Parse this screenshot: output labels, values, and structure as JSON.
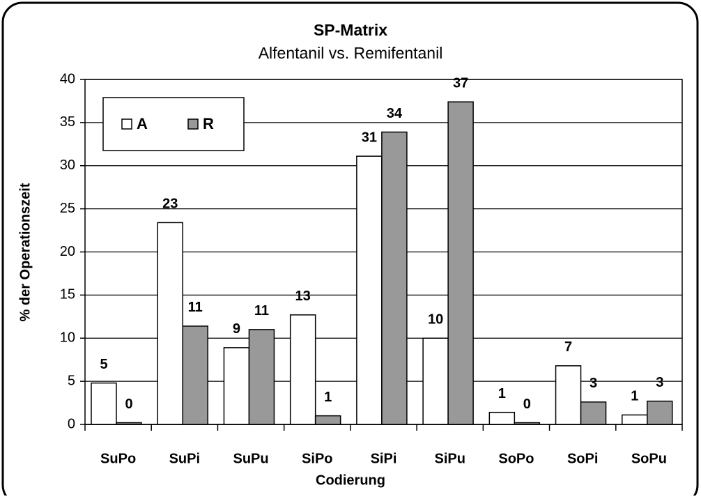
{
  "chart_data": {
    "type": "bar",
    "title": "SP-Matrix",
    "subtitle": "Alfentanil vs. Remifentanil",
    "x_label": "Codierung",
    "y_label": "% der Operationszeit",
    "categories": [
      "SuPo",
      "SuPi",
      "SuPu",
      "SiPo",
      "SiPi",
      "SiPu",
      "SoPo",
      "SoPi",
      "SoPu"
    ],
    "series": [
      {
        "name": "A",
        "color": "#ffffff",
        "values": [
          4.8,
          23.4,
          8.9,
          12.7,
          31.1,
          10.0,
          1.4,
          6.8,
          1.1
        ],
        "value_labels": [
          "5",
          "23",
          "9",
          "13",
          "31",
          "10",
          "1",
          "7",
          "1"
        ]
      },
      {
        "name": "R",
        "color": "#999999",
        "values": [
          0.2,
          11.4,
          11.0,
          1.0,
          33.9,
          37.4,
          0.2,
          2.6,
          2.7
        ],
        "value_labels": [
          "0",
          "11",
          "11",
          "1",
          "34",
          "37",
          "0",
          "3",
          "3"
        ]
      }
    ],
    "ylim": [
      0,
      40
    ],
    "yticks": [
      0,
      5,
      10,
      15,
      20,
      25,
      30,
      35,
      40
    ],
    "grid": true,
    "legend": "upper left"
  }
}
